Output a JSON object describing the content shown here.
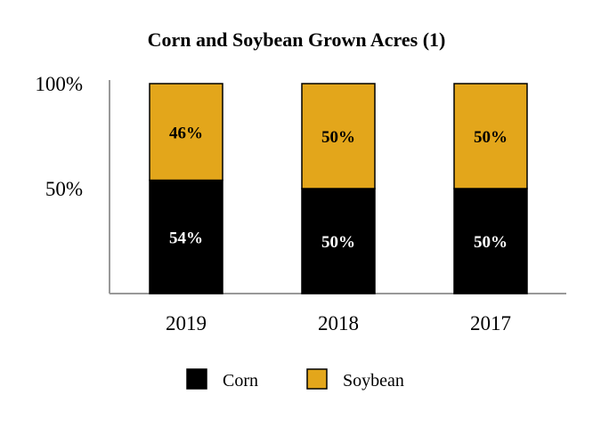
{
  "chart_data": {
    "type": "bar",
    "stacked": true,
    "title": "Corn and Soybean Grown Acres (1)",
    "xlabel": "",
    "ylabel": "",
    "categories": [
      "2019",
      "2018",
      "2017"
    ],
    "series": [
      {
        "name": "Corn",
        "values": [
          54,
          50,
          50
        ],
        "color": "#000000",
        "labels": [
          "54%",
          "50%",
          "50%"
        ],
        "label_color": "#ffffff"
      },
      {
        "name": "Soybean",
        "values": [
          46,
          50,
          50
        ],
        "color": "#e3a61b",
        "labels": [
          "46%",
          "50%",
          "50%"
        ],
        "label_color": "#000000"
      }
    ],
    "ylim": [
      0,
      100
    ],
    "y_ticks": [
      {
        "value": 100,
        "label": "100%"
      },
      {
        "value": 50,
        "label": "50%"
      }
    ],
    "grid": false,
    "legend": {
      "position": "bottom"
    },
    "axis_color": "#999999"
  }
}
